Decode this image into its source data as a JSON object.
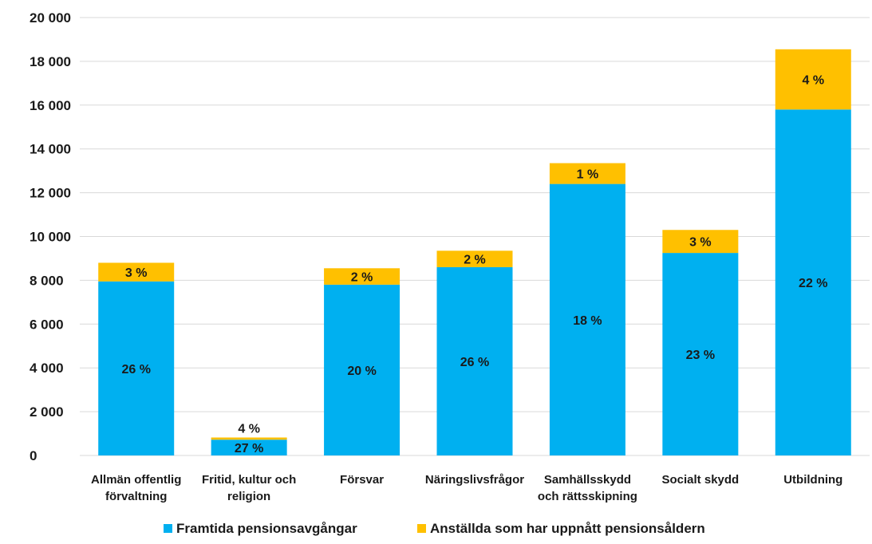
{
  "chart_data": {
    "type": "bar",
    "stacked": true,
    "categories": [
      "Allmän offentlig förvaltning",
      "Fritid, kultur och religion",
      "Försvar",
      "Näringslivsfrågor",
      "Samhällsskydd och rättsskipning",
      "Socialt skydd",
      "Utbildning"
    ],
    "category_lines": [
      [
        "Allmän offentlig",
        "förvaltning"
      ],
      [
        "Fritid, kultur och",
        "religion"
      ],
      [
        "Försvar"
      ],
      [
        "Näringslivsfrågor"
      ],
      [
        "Samhällsskydd",
        "och rättsskipning"
      ],
      [
        "Socialt skydd"
      ],
      [
        "Utbildning"
      ]
    ],
    "series": [
      {
        "name": "Framtida pensionsavgångar",
        "color": "#00B0F0",
        "values": [
          7950,
          720,
          7800,
          8600,
          12400,
          9250,
          15800
        ],
        "labels": [
          "26 %",
          "27 %",
          "20 %",
          "26 %",
          "18 %",
          "23 %",
          "22 %"
        ]
      },
      {
        "name": "Anställda som har uppnått pensionsåldern",
        "color": "#FFC000",
        "values": [
          850,
          100,
          750,
          750,
          950,
          1050,
          2750
        ],
        "labels": [
          "3 %",
          "4 %",
          "2 %",
          "2 %",
          "1 %",
          "3 %",
          "4 %"
        ]
      }
    ],
    "ylim": [
      0,
      20000
    ],
    "yticks": [
      0,
      2000,
      4000,
      6000,
      8000,
      10000,
      12000,
      14000,
      16000,
      18000,
      20000
    ],
    "ytick_labels": [
      "0",
      "2 000",
      "4 000",
      "6 000",
      "8 000",
      "10 000",
      "12 000",
      "14 000",
      "16 000",
      "18 000",
      "20 000"
    ],
    "grid": true,
    "legend_position": "bottom",
    "title": "",
    "xlabel": "",
    "ylabel": ""
  }
}
